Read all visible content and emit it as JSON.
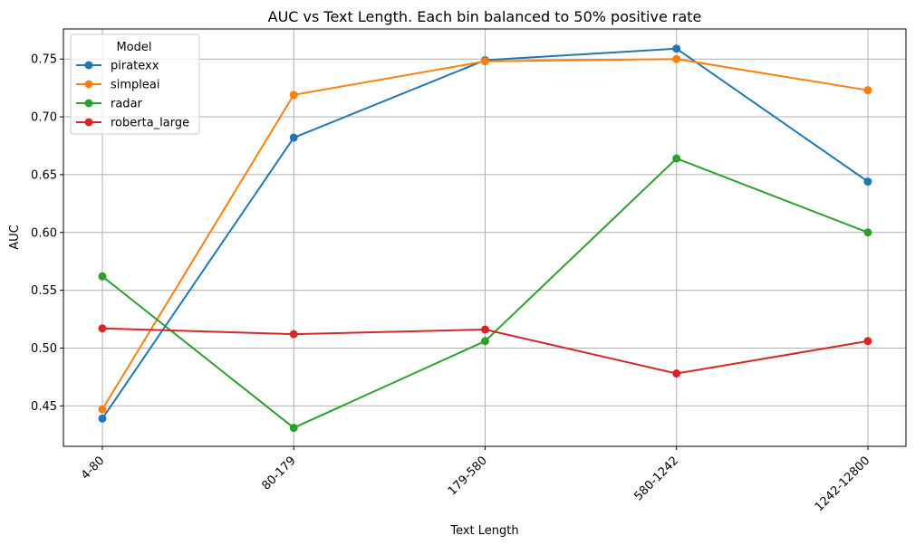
{
  "chart_data": {
    "type": "line",
    "title": "AUC vs Text Length. Each bin balanced to 50% positive rate",
    "xlabel": "Text Length",
    "ylabel": "AUC",
    "categories": [
      "4-80",
      "80-179",
      "179-580",
      "580-1242",
      "1242-12800"
    ],
    "ylim": [
      0.415,
      0.776
    ],
    "yticks": [
      "0.45",
      "0.50",
      "0.55",
      "0.60",
      "0.65",
      "0.70",
      "0.75"
    ],
    "grid": true,
    "legend": {
      "title": "Model",
      "placement": "top-left"
    },
    "series": [
      {
        "name": "piratexx",
        "color": "#1f77b4",
        "values": [
          0.439,
          0.682,
          0.749,
          0.759,
          0.644
        ]
      },
      {
        "name": "simpleai",
        "color": "#ff7f0e",
        "values": [
          0.447,
          0.719,
          0.748,
          0.75,
          0.723
        ]
      },
      {
        "name": "radar",
        "color": "#2ca02c",
        "values": [
          0.562,
          0.431,
          0.506,
          0.664,
          0.6
        ]
      },
      {
        "name": "roberta_large",
        "color": "#d62728",
        "values": [
          0.517,
          0.512,
          0.516,
          0.478,
          0.506
        ]
      }
    ]
  }
}
